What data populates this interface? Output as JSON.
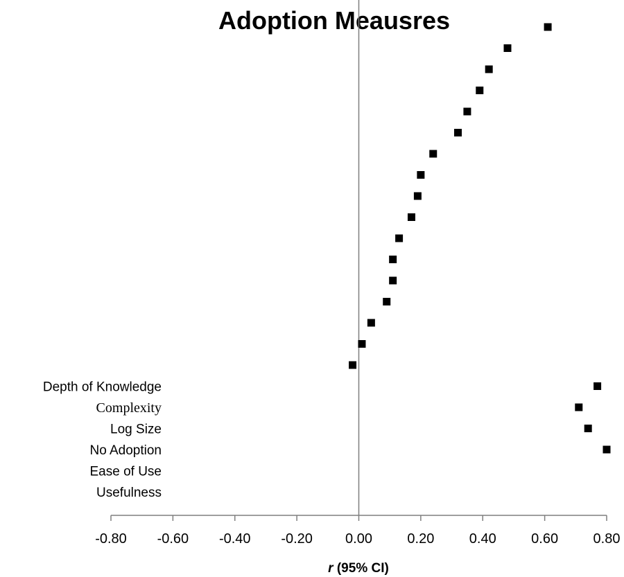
{
  "chart_data": {
    "type": "scatter",
    "title": "Adoption Meausres",
    "xlabel_italic": "r",
    "xlabel_rest": " (95% CI)",
    "xlim": [
      -0.8,
      0.8
    ],
    "xticks": [
      "-0.80",
      "-0.60",
      "-0.40",
      "-0.20",
      "0.00",
      "0.20",
      "0.40",
      "0.60",
      "0.80"
    ],
    "xtick_values": [
      -0.8,
      -0.6,
      -0.4,
      -0.2,
      0.0,
      0.2,
      0.4,
      0.6,
      0.8
    ],
    "reference_line_x": 0.0,
    "rows": [
      {
        "label": "",
        "value": 0.61
      },
      {
        "label": "",
        "value": 0.48
      },
      {
        "label": "",
        "value": 0.42
      },
      {
        "label": "",
        "value": 0.39
      },
      {
        "label": "",
        "value": 0.35
      },
      {
        "label": "",
        "value": 0.32
      },
      {
        "label": "",
        "value": 0.24
      },
      {
        "label": "",
        "value": 0.2
      },
      {
        "label": "",
        "value": 0.19
      },
      {
        "label": "",
        "value": 0.17
      },
      {
        "label": "",
        "value": 0.13
      },
      {
        "label": "",
        "value": 0.11
      },
      {
        "label": "",
        "value": 0.11
      },
      {
        "label": "",
        "value": 0.09
      },
      {
        "label": "",
        "value": 0.04
      },
      {
        "label": "",
        "value": 0.01
      },
      {
        "label": "",
        "value": -0.02
      },
      {
        "label": "Depth of Knowledge",
        "value": 0.77
      },
      {
        "label": "Complexity",
        "value": 0.71
      },
      {
        "label": "Log Size",
        "value": 0.74
      },
      {
        "label": "No Adoption",
        "value": 0.8
      },
      {
        "label": "Ease of Use",
        "value": null
      },
      {
        "label": "Usefulness",
        "value": null
      }
    ],
    "serif_labels": [
      "Complexity"
    ],
    "colors": {
      "marker": "#000000",
      "axis": "#7f7f7f",
      "reference_line": "#7f7f7f",
      "text": "#000000"
    }
  }
}
